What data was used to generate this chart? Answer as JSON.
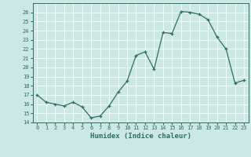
{
  "x": [
    0,
    1,
    2,
    3,
    4,
    5,
    6,
    7,
    8,
    9,
    10,
    11,
    12,
    13,
    14,
    15,
    16,
    17,
    18,
    19,
    20,
    21,
    22,
    23
  ],
  "y": [
    17.0,
    16.2,
    16.0,
    15.8,
    16.2,
    15.7,
    14.5,
    14.7,
    15.8,
    17.3,
    18.5,
    21.3,
    21.7,
    19.8,
    23.8,
    23.7,
    26.1,
    26.0,
    25.8,
    25.2,
    23.3,
    22.0,
    18.3,
    18.6
  ],
  "xlabel": "Humidex (Indice chaleur)",
  "xlim": [
    -0.5,
    23.5
  ],
  "ylim": [
    14,
    27
  ],
  "yticks": [
    14,
    15,
    16,
    17,
    18,
    19,
    20,
    21,
    22,
    23,
    24,
    25,
    26
  ],
  "xticks": [
    0,
    1,
    2,
    3,
    4,
    5,
    6,
    7,
    8,
    9,
    10,
    11,
    12,
    13,
    14,
    15,
    16,
    17,
    18,
    19,
    20,
    21,
    22,
    23
  ],
  "bg_color": "#cce8e4",
  "grid_color": "#ffffff",
  "line_color": "#2d6e63",
  "tick_color": "#2d6e63",
  "label_color": "#2d6e63",
  "tick_fontsize": 5.0,
  "xlabel_fontsize": 6.5
}
